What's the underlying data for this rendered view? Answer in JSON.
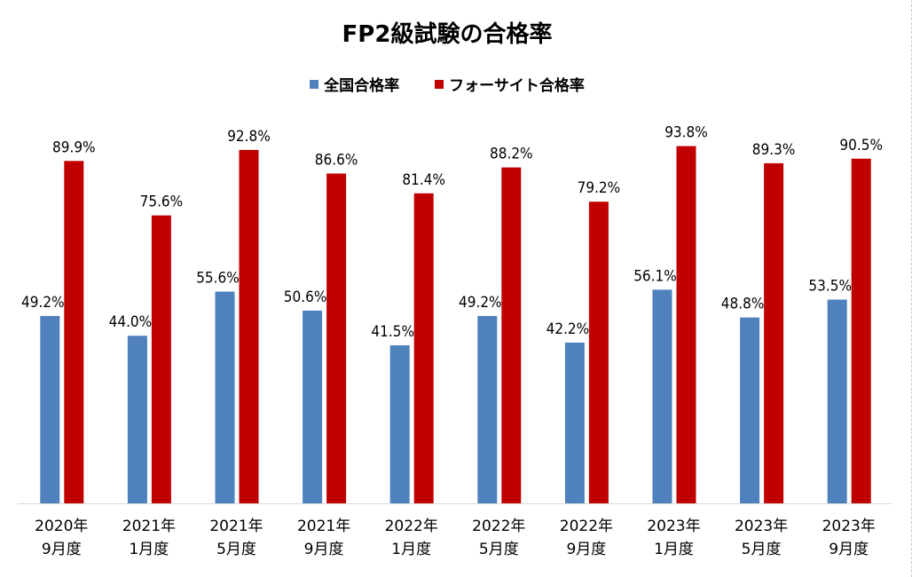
{
  "chart_data": {
    "type": "bar",
    "title": "FP2級試験の合格率",
    "xlabel": "",
    "ylabel": "",
    "ylim": [
      0,
      100
    ],
    "grid": false,
    "legend_position": "top-center",
    "categories": [
      [
        "2020年",
        "9月度"
      ],
      [
        "2021年",
        "1月度"
      ],
      [
        "2021年",
        "5月度"
      ],
      [
        "2021年",
        "9月度"
      ],
      [
        "2022年",
        "1月度"
      ],
      [
        "2022年",
        "5月度"
      ],
      [
        "2022年",
        "9月度"
      ],
      [
        "2023年",
        "1月度"
      ],
      [
        "2023年",
        "5月度"
      ],
      [
        "2023年",
        "9月度"
      ]
    ],
    "series": [
      {
        "name": "全国合格率",
        "color": "#4f81bd",
        "values": [
          49.2,
          44.0,
          55.6,
          50.6,
          41.5,
          49.2,
          42.2,
          56.1,
          48.8,
          53.5
        ],
        "labels": [
          "49.2%",
          "44.0%",
          "55.6%",
          "50.6%",
          "41.5%",
          "49.2%",
          "42.2%",
          "56.1%",
          "48.8%",
          "53.5%"
        ]
      },
      {
        "name": "フォーサイト合格率",
        "color": "#c00000",
        "values": [
          89.9,
          75.6,
          92.8,
          86.6,
          81.4,
          88.2,
          79.2,
          93.8,
          89.3,
          90.5
        ],
        "labels": [
          "89.9%",
          "75.6%",
          "92.8%",
          "86.6%",
          "81.4%",
          "88.2%",
          "79.2%",
          "93.8%",
          "89.3%",
          "90.5%"
        ]
      }
    ]
  }
}
